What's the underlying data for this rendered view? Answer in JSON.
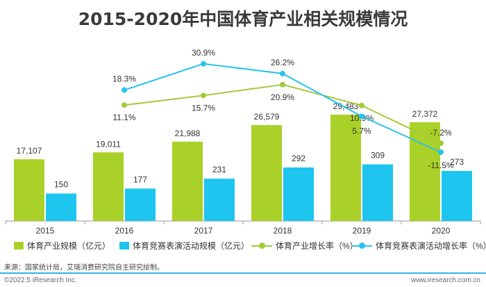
{
  "title": "2015-2020年中国体育产业相关规模情况",
  "colors": {
    "industry": "#a9d127",
    "event": "#1ec5ef",
    "industry_growth": "#a4c93a",
    "event_growth": "#29c2ec",
    "axis": "#9a9a9a",
    "label": "#333333"
  },
  "chart_data": {
    "type": "bar",
    "categories": [
      "2015",
      "2016",
      "2017",
      "2018",
      "2019",
      "2020"
    ],
    "series": [
      {
        "name": "体育产业规模（亿元）",
        "kind": "bar",
        "values": [
          17107,
          19011,
          21988,
          26579,
          29483,
          27372
        ],
        "labels": [
          "17,107",
          "19,011",
          "21,988",
          "26,579",
          "29,483",
          "27,372"
        ]
      },
      {
        "name": "体育竞赛表演活动规模（亿元）",
        "kind": "bar",
        "values": [
          150,
          177,
          231,
          292,
          309,
          273
        ],
        "labels": [
          "150",
          "177",
          "231",
          "292",
          "309",
          "273"
        ]
      },
      {
        "name": "体育产业增长率（%）",
        "kind": "line",
        "values": [
          null,
          11.1,
          15.7,
          20.9,
          10.9,
          -7.2
        ],
        "labels": [
          "",
          "11.1%",
          "15.7%",
          "20.9%",
          "10.9%",
          "-7.2%"
        ]
      },
      {
        "name": "体育竞赛表演活动增长率（%）",
        "kind": "line",
        "values": [
          null,
          18.3,
          30.9,
          26.2,
          5.7,
          -11.5
        ],
        "labels": [
          "",
          "18.3%",
          "30.9%",
          "26.2%",
          "5.7%",
          "-11.5%"
        ]
      }
    ],
    "legend": "bottom"
  },
  "legend": {
    "industry": "体育产业规模（亿元）",
    "event": "体育竞赛表演活动规模（亿元）",
    "industry_growth": "体育产业增长率（%）",
    "event_growth": "体育竞赛表演活动增长率（%）"
  },
  "footer": {
    "source": "来源：国家统计局，艾瑞消费研究院自主研究绘制。",
    "copyright": "©2022.5 iResearch Inc.",
    "website": "www.iresearch.com.cn"
  }
}
